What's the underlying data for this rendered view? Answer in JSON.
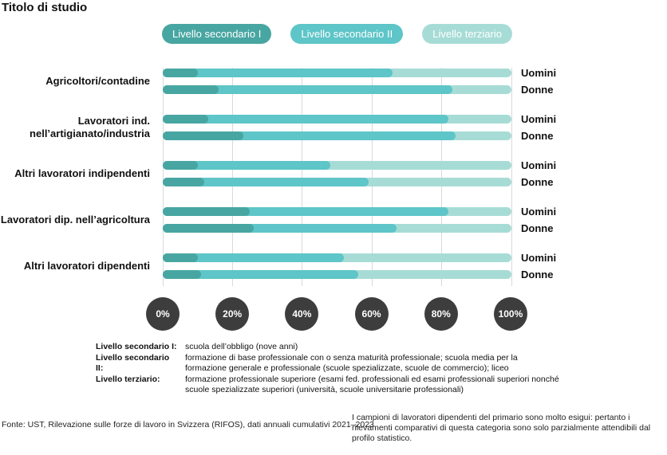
{
  "title": "Titolo di studio",
  "legend": [
    {
      "label": "Livello secondario I",
      "color": "#48a6a2"
    },
    {
      "label": "Livello secondario II",
      "color": "#5ec5c8"
    },
    {
      "label": "Livello terziario",
      "color": "#a7dcd6"
    }
  ],
  "chart_data": {
    "type": "bar",
    "orientation": "horizontal",
    "stacked": true,
    "title": "Titolo di studio",
    "series_labels": [
      "Livello secondario I",
      "Livello secondario II",
      "Livello terziario"
    ],
    "colors": [
      "#48a6a2",
      "#5ec5c8",
      "#a7dcd6"
    ],
    "axis_ticks": [
      "0%",
      "20%",
      "40%",
      "60%",
      "80%",
      "100%"
    ],
    "xlim": [
      0,
      100
    ],
    "unit": "%",
    "gridline_color": "#d9d9d9",
    "tick_circle_color": "#3d3d3d",
    "groups": [
      {
        "label": "Agricoltori/contadine",
        "bars": [
          {
            "name": "Uomini",
            "values": [
              10,
              56,
              34
            ]
          },
          {
            "name": "Donne",
            "values": [
              16,
              67,
              17
            ]
          }
        ]
      },
      {
        "label": "Lavoratori ind.\nnell’artigianato/industria",
        "bars": [
          {
            "name": "Uomini",
            "values": [
              13,
              69,
              18
            ]
          },
          {
            "name": "Donne",
            "values": [
              23,
              61,
              16
            ]
          }
        ]
      },
      {
        "label": "Altri lavoratori indipendenti",
        "bars": [
          {
            "name": "Uomini",
            "values": [
              10,
              38,
              52
            ]
          },
          {
            "name": "Donne",
            "values": [
              12,
              47,
              41
            ]
          }
        ]
      },
      {
        "label": "Lavoratori dip. nell’agricoltura",
        "bars": [
          {
            "name": "Uomini",
            "values": [
              25,
              57,
              18
            ]
          },
          {
            "name": "Donne",
            "values": [
              26,
              41,
              33
            ]
          }
        ]
      },
      {
        "label": "Altri lavoratori dipendenti",
        "bars": [
          {
            "name": "Uomini",
            "values": [
              10,
              42,
              48
            ]
          },
          {
            "name": "Donne",
            "values": [
              11,
              45,
              44
            ]
          }
        ]
      }
    ]
  },
  "footnotes": [
    {
      "term": "Livello secondario I:",
      "desc": "scuola dell’obbligo (nove anni)"
    },
    {
      "term": "Livello secondario II:",
      "desc": "formazione di base professionale con o senza maturità professionale; scuola media per la formazione generale e professionale (scuole spezializzate, scuole de commercio); liceo"
    },
    {
      "term": "Livello terziario:",
      "desc": "formazione professionale superiore (esami fed. professionali ed esami professionali superiori nonché scuole spezializzate superiori (università, scuole universitarie professionali)"
    }
  ],
  "source": "Fonte: UST, Rilevazione sulle forze di lavoro in Svizzera (RIFOS), dati annuali cumulativi 2021–2023",
  "note": "I campioni di lavoratori dipendenti del primario sono molto esigui: pertanto i rilevamenti comparativi di questa categoria sono solo parzialmente attendibili dal profilo statistico."
}
